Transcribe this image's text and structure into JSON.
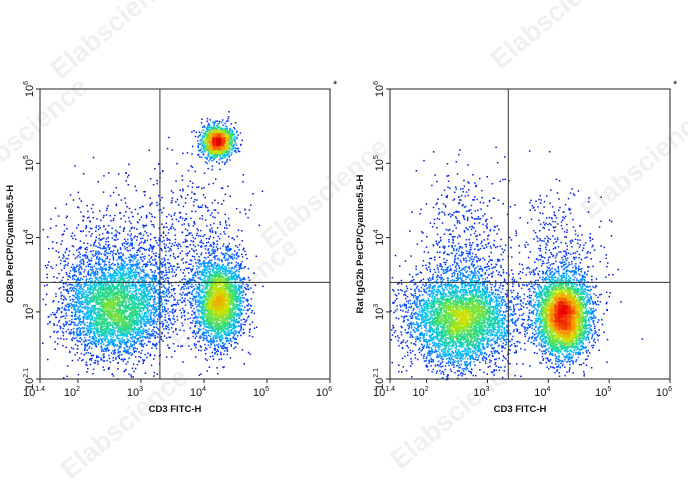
{
  "watermark": "Elabscience",
  "chart_data": [
    {
      "type": "scatter",
      "style": "flow-cytometry density dot plot",
      "xlabel": "CD3 FITC-H",
      "ylabel": "CD8a PerCP/Cyanine5.5-H",
      "corner_mark": "*",
      "x_scale": "log",
      "y_scale": "log",
      "xlim": [
        25,
        1000000
      ],
      "ylim": [
        125,
        1000000
      ],
      "x_ticks": [
        {
          "value": 25,
          "base": "10",
          "exp": "1.4"
        },
        {
          "value": 100,
          "base": "10",
          "exp": "2"
        },
        {
          "value": 1000,
          "base": "10",
          "exp": "3"
        },
        {
          "value": 10000,
          "base": "10",
          "exp": "4"
        },
        {
          "value": 100000,
          "base": "10",
          "exp": "5"
        },
        {
          "value": 1000000,
          "base": "10",
          "exp": "6"
        }
      ],
      "y_ticks": [
        {
          "value": 125,
          "base": "10",
          "exp": "2.1"
        },
        {
          "value": 1000,
          "base": "10",
          "exp": "3"
        },
        {
          "value": 10000,
          "base": "10",
          "exp": "4"
        },
        {
          "value": 100000,
          "base": "10",
          "exp": "5"
        },
        {
          "value": 1000000,
          "base": "10",
          "exp": "6"
        }
      ],
      "quadrant_gate": {
        "x": 2000,
        "y": 2500
      },
      "populations": [
        {
          "center": [
            400,
            1150
          ],
          "spread": [
            0.42,
            0.34
          ],
          "share": 0.42
        },
        {
          "center": [
            17000,
            1400
          ],
          "spread": [
            0.2,
            0.3
          ],
          "share": 0.3
        },
        {
          "center": [
            16000,
            200000
          ],
          "spread": [
            0.13,
            0.11
          ],
          "share": 0.14
        },
        {
          "center": [
            350,
            5000
          ],
          "spread": [
            0.55,
            0.5
          ],
          "share": 0.08
        },
        {
          "center": [
            6000,
            8000
          ],
          "spread": [
            0.45,
            0.55
          ],
          "share": 0.06
        }
      ],
      "event_count": 9000
    },
    {
      "type": "scatter",
      "style": "flow-cytometry density dot plot",
      "xlabel": "CD3 FITC-H",
      "ylabel": "Rat IgG2b PerCP/Cyanine5.5-H",
      "corner_mark": "*",
      "x_scale": "log",
      "y_scale": "log",
      "xlim": [
        25,
        1000000
      ],
      "ylim": [
        125,
        1000000
      ],
      "x_ticks": [
        {
          "value": 25,
          "base": "10",
          "exp": "1.4"
        },
        {
          "value": 100,
          "base": "10",
          "exp": "2"
        },
        {
          "value": 1000,
          "base": "10",
          "exp": "3"
        },
        {
          "value": 10000,
          "base": "10",
          "exp": "4"
        },
        {
          "value": 100000,
          "base": "10",
          "exp": "5"
        },
        {
          "value": 1000000,
          "base": "10",
          "exp": "6"
        }
      ],
      "y_ticks": [
        {
          "value": 125,
          "base": "10",
          "exp": "2.1"
        },
        {
          "value": 1000,
          "base": "10",
          "exp": "3"
        },
        {
          "value": 10000,
          "base": "10",
          "exp": "4"
        },
        {
          "value": 100000,
          "base": "10",
          "exp": "5"
        },
        {
          "value": 1000000,
          "base": "10",
          "exp": "6"
        }
      ],
      "quadrant_gate": {
        "x": 2200,
        "y": 2500
      },
      "populations": [
        {
          "center": [
            350,
            800
          ],
          "spread": [
            0.45,
            0.32
          ],
          "share": 0.45
        },
        {
          "center": [
            17000,
            900
          ],
          "spread": [
            0.22,
            0.28
          ],
          "share": 0.43
        },
        {
          "center": [
            400,
            6000
          ],
          "spread": [
            0.35,
            0.55
          ],
          "share": 0.07
        },
        {
          "center": [
            15000,
            5000
          ],
          "spread": [
            0.35,
            0.5
          ],
          "share": 0.05
        }
      ],
      "event_count": 9000
    }
  ]
}
